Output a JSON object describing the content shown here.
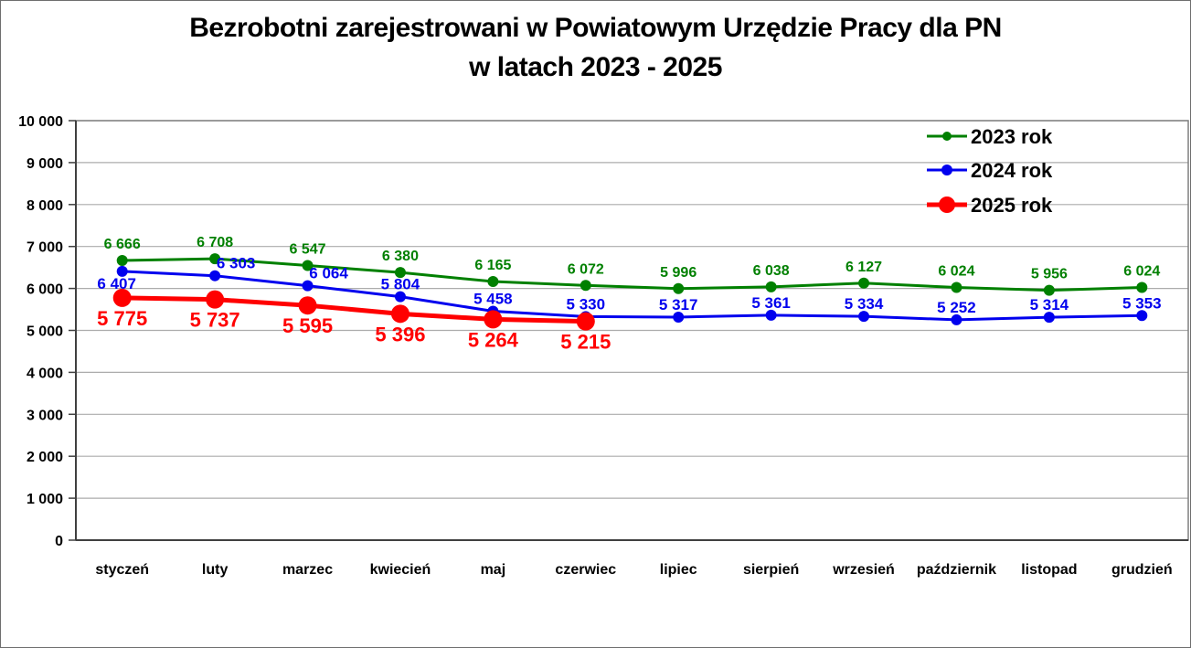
{
  "title": {
    "line1": "Bezrobotni zarejestrowani w Powiatowym Urzędzie Pracy dla PN",
    "line2": "w latach 2023 - 2025"
  },
  "chart_data": {
    "type": "line",
    "categories": [
      "styczeń",
      "luty",
      "marzec",
      "kwiecień",
      "maj",
      "czerwiec",
      "lipiec",
      "sierpień",
      "wrzesień",
      "październik",
      "listopad",
      "grudzień"
    ],
    "series": [
      {
        "name": "2023 rok",
        "color": "#008000",
        "values": [
          6666,
          6708,
          6547,
          6380,
          6165,
          6072,
          5996,
          6038,
          6127,
          6024,
          5956,
          6024
        ],
        "labels": [
          "6 666",
          "6 708",
          "6 547",
          "6 380",
          "6 165",
          "6 072",
          "5 996",
          "6 038",
          "6 127",
          "6 024",
          "5 956",
          "6 024"
        ]
      },
      {
        "name": "2024 rok",
        "color": "#0000EE",
        "values": [
          6407,
          6303,
          6064,
          5804,
          5458,
          5330,
          5317,
          5361,
          5334,
          5252,
          5314,
          5353
        ],
        "labels": [
          "6 407",
          "6 303",
          "6 064",
          "5 804",
          "5 458",
          "5 330",
          "5 317",
          "5 361",
          "5 334",
          "5 252",
          "5 314",
          "5 353"
        ]
      },
      {
        "name": "2025 rok",
        "color": "#FF0000",
        "values": [
          5775,
          5737,
          5595,
          5396,
          5264,
          5215
        ],
        "labels": [
          "5 775",
          "5 737",
          "5 595",
          "5 396",
          "5 264",
          "5 215"
        ]
      }
    ],
    "ylim": [
      0,
      10000
    ],
    "ytick_step": 1000,
    "ytick_labels": [
      "0",
      "1 000",
      "2 000",
      "3 000",
      "4 000",
      "5 000",
      "6 000",
      "7 000",
      "8 000",
      "9 000",
      "10 000"
    ],
    "grid": true,
    "legend_position": "top-right",
    "axis_color": "#404040",
    "grid_color": "#ACACAC",
    "border_color": "#7F7F7F",
    "text_color": "#000000"
  }
}
